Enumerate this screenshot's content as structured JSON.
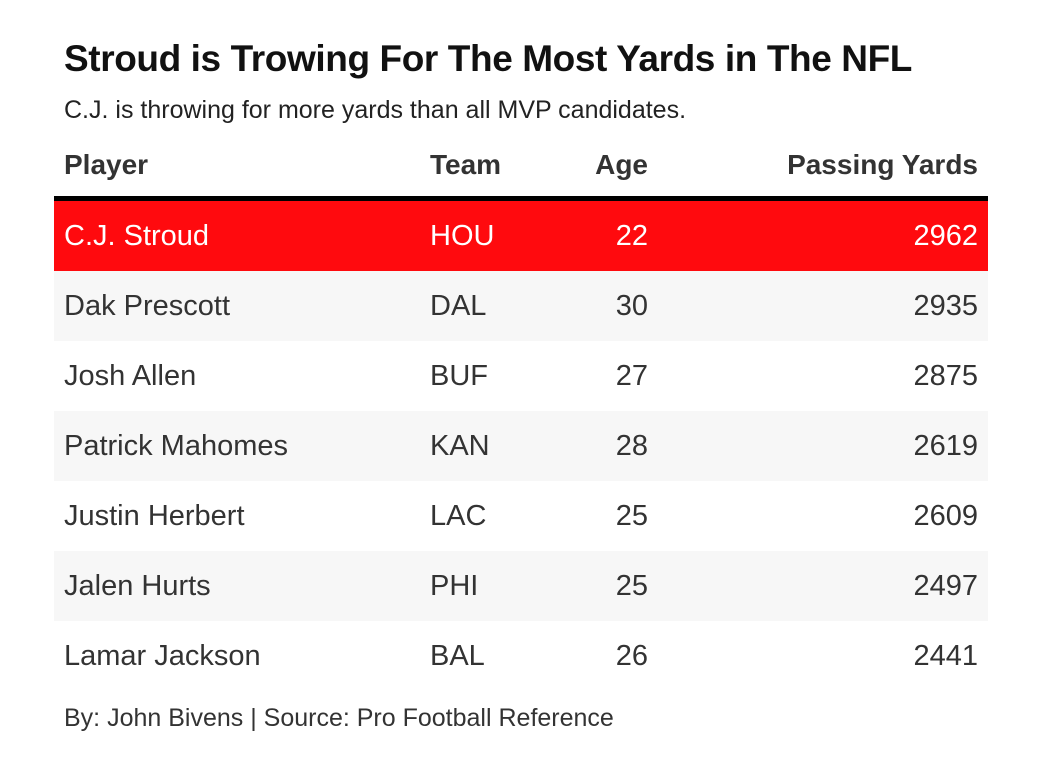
{
  "title": "Stroud is Trowing For The Most Yards in The NFL",
  "subtitle": "C.J. is throwing for more yards than all MVP candidates.",
  "footer": "By: John Bivens | Source: Pro Football Reference",
  "highlight_color": "#ff0a0e",
  "chart_data": {
    "type": "table",
    "title": "Stroud is Trowing For The Most Yards in The NFL",
    "subtitle": "C.J. is throwing for more yards than all MVP candidates.",
    "columns": [
      "Player",
      "Team",
      "Age",
      "Passing Yards"
    ],
    "rows": [
      {
        "player": "C.J. Stroud",
        "team": "HOU",
        "age": "22",
        "yards": "2962",
        "highlight": true
      },
      {
        "player": "Dak Prescott",
        "team": "DAL",
        "age": "30",
        "yards": "2935",
        "highlight": false
      },
      {
        "player": "Josh Allen",
        "team": "BUF",
        "age": "27",
        "yards": "2875",
        "highlight": false
      },
      {
        "player": "Patrick Mahomes",
        "team": "KAN",
        "age": "28",
        "yards": "2619",
        "highlight": false
      },
      {
        "player": "Justin Herbert",
        "team": "LAC",
        "age": "25",
        "yards": "2609",
        "highlight": false
      },
      {
        "player": "Jalen Hurts",
        "team": "PHI",
        "age": "25",
        "yards": "2497",
        "highlight": false
      },
      {
        "player": "Lamar Jackson",
        "team": "BAL",
        "age": "26",
        "yards": "2441",
        "highlight": false
      }
    ]
  }
}
